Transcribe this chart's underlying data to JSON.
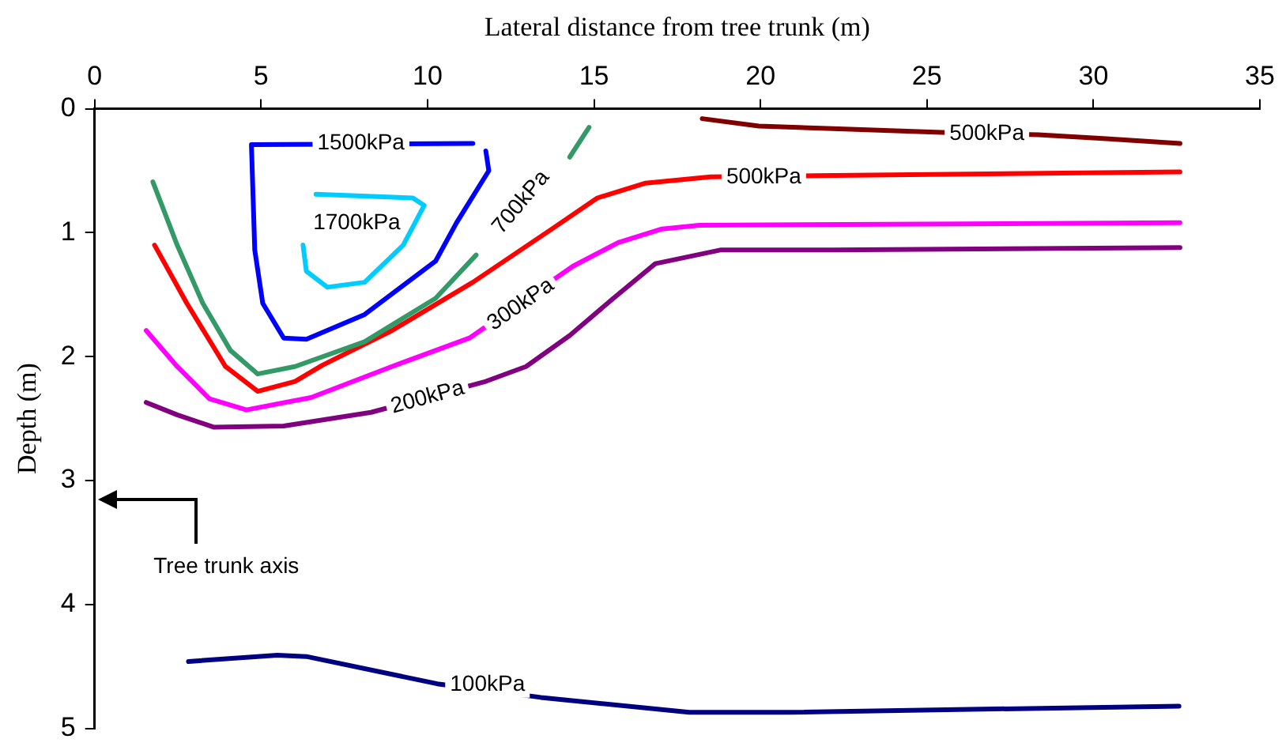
{
  "chart_data": {
    "type": "line",
    "xlabel": "Lateral distance from tree trunk (m)",
    "ylabel": "Depth (m)",
    "xlim": [
      0,
      35
    ],
    "xticks": [
      0,
      5,
      10,
      15,
      20,
      25,
      30,
      35
    ],
    "ylim": [
      5,
      0
    ],
    "yticks": [
      0,
      1,
      2,
      3,
      4,
      5
    ],
    "grid": false,
    "legend": false,
    "marker": "none",
    "line_style": "solid",
    "series": [
      {
        "color": "#0000ff",
        "x": [
          11.75,
          11.84,
          10.87,
          10.24,
          8.11,
          6.36,
          5.68,
          5.05,
          4.81,
          4.71,
          11.36
        ],
        "values": [
          0.34,
          0.5,
          0.92,
          1.23,
          1.66,
          1.86,
          1.85,
          1.57,
          1.14,
          0.29,
          0.28
        ]
      },
      {
        "color": "#00ccff",
        "x": [
          6.26,
          6.36,
          6.99,
          8.11,
          9.27,
          9.9,
          9.56,
          6.65
        ],
        "values": [
          1.1,
          1.31,
          1.44,
          1.4,
          1.1,
          0.78,
          0.72,
          0.69
        ]
      },
      {
        "color": "#339966",
        "x": [
          1.75,
          2.48,
          3.25,
          4.08,
          4.9,
          6.02,
          8.11,
          10.24,
          11.46,
          13.06,
          14.27,
          14.85
        ],
        "values": [
          0.59,
          1.1,
          1.57,
          1.95,
          2.14,
          2.08,
          1.88,
          1.53,
          1.18,
          null,
          0.39,
          0.15
        ]
      },
      {
        "color": "#ff0000",
        "x": [
          1.8,
          2.77,
          3.93,
          4.9,
          6.02,
          6.84,
          8.93,
          11.36,
          13.79,
          15.1,
          16.55,
          18.5,
          21.65,
          32.6
        ],
        "values": [
          1.1,
          1.57,
          2.08,
          2.28,
          2.2,
          2.07,
          1.79,
          1.4,
          0.96,
          0.72,
          0.6,
          0.55,
          0.54,
          0.51
        ]
      },
      {
        "color": "#ff00ff",
        "x": [
          1.55,
          2.48,
          3.45,
          4.56,
          6.5,
          8.93,
          11.26,
          14.37,
          15.73,
          17.04,
          18.16,
          32.6
        ],
        "values": [
          1.79,
          2.08,
          2.34,
          2.43,
          2.33,
          2.08,
          1.85,
          1.27,
          1.08,
          0.97,
          0.94,
          0.92
        ]
      },
      {
        "color": "#800080",
        "x": [
          1.55,
          2.48,
          3.59,
          5.68,
          8.3,
          11.75,
          12.96,
          14.27,
          15.58,
          16.84,
          18.79,
          22.18,
          32.6
        ],
        "values": [
          2.37,
          2.47,
          2.57,
          2.56,
          2.45,
          2.2,
          2.08,
          1.83,
          1.53,
          1.25,
          1.14,
          1.14,
          1.12
        ]
      },
      {
        "color": "#800000",
        "x": [
          18.25,
          19.95,
          22.18,
          25.44,
          28.35,
          30.29,
          32.6
        ],
        "values": [
          0.08,
          0.14,
          0.16,
          0.19,
          0.21,
          0.24,
          0.28
        ]
      },
      {
        "color": "#000080",
        "x": [
          2.82,
          5.49,
          6.36,
          10.29,
          13.4,
          17.86,
          20.87,
          32.57
        ],
        "values": [
          4.46,
          4.41,
          4.42,
          4.64,
          4.75,
          4.87,
          4.87,
          4.82
        ]
      }
    ],
    "annotations": [
      {
        "text": "1500kPa",
        "x": 8.0,
        "y": 0.28
      },
      "1700kPa",
      "700kPa",
      {
        "text": "500kPa",
        "x": 20.1,
        "y": 0.55
      },
      {
        "text": "500kPa",
        "x": 26.8,
        "y": 0.2
      },
      {
        "text": "300kPa",
        "x": 12.8,
        "y": 1.58
      },
      {
        "text": "200kPa",
        "x": 10.0,
        "y": 2.33
      },
      {
        "text": "100kPa",
        "x": 11.8,
        "y": 4.65
      },
      "Tree trunk axis"
    ]
  }
}
